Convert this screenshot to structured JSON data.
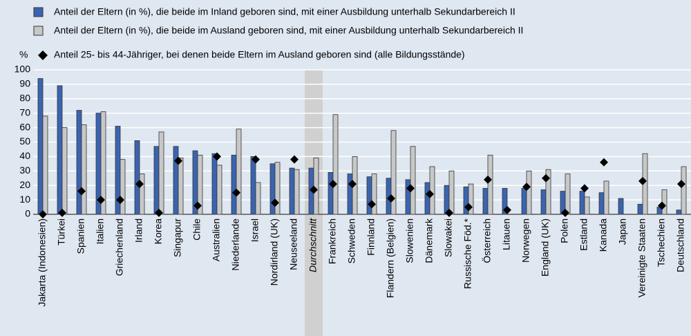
{
  "chart_data": {
    "type": "bar",
    "legend_title": "%",
    "categories": [
      "Jakarta (Indonesien)",
      "Türkei",
      "Spanien",
      "Italien",
      "Griechenland",
      "Irland",
      "Korea",
      "Singapur",
      "Chile",
      "Australien",
      "Niederlande",
      "Israel",
      "Nordirland (UK)",
      "Neuseeland",
      "Durchschnitt",
      "Frankreich",
      "Schweden",
      "Finnland",
      "Flandern (Belgien)",
      "Slowenien",
      "Dänemark",
      "Slowakei",
      "Russische Föd.*",
      "Österreich",
      "Litauen",
      "Norwegen",
      "England (UK)",
      "Polen",
      "Estland",
      "Kanada",
      "Japan",
      "Vereinigte Staaten",
      "Tschechien",
      "Deutschland"
    ],
    "highlight_index": 14,
    "series": [
      {
        "name": "Anteil der Eltern (in %), die beide im Inland geboren sind, mit einer Ausbildung unterhalb Sekundarbereich II",
        "color": "#3a64b0",
        "kind": "bar",
        "values": [
          94,
          89,
          72,
          70,
          61,
          51,
          47,
          47,
          44,
          42,
          41,
          40,
          35,
          32,
          32,
          29,
          28,
          26,
          25,
          24,
          22,
          20,
          19,
          18,
          18,
          18,
          17,
          16,
          16,
          15,
          11,
          7,
          5,
          3
        ]
      },
      {
        "name": "Anteil der Eltern (in %), die beide im Ausland geboren sind, mit einer Ausbildung unterhalb Sekundarbereich II",
        "color": "#c8c8c8",
        "kind": "bar",
        "values": [
          68,
          60,
          62,
          71,
          38,
          28,
          57,
          39,
          41,
          34,
          59,
          22,
          36,
          31,
          39,
          69,
          40,
          28,
          58,
          47,
          33,
          30,
          21,
          41,
          null,
          30,
          31,
          28,
          12,
          23,
          null,
          42,
          17,
          33
        ]
      },
      {
        "name": "Anteil 25- bis 44-Jähriger, bei denen beide Eltern im Ausland geboren sind (alle Bildungsstände)",
        "color": "#000000",
        "kind": "diamond",
        "values": [
          0,
          1,
          16,
          10,
          10,
          21,
          1,
          37,
          6,
          40,
          15,
          38,
          8,
          38,
          17,
          21,
          21,
          7,
          11,
          18,
          14,
          1,
          5,
          24,
          3,
          19,
          25,
          1,
          18,
          36,
          null,
          23,
          6,
          21
        ]
      }
    ],
    "ylim": [
      0,
      100
    ],
    "yticks": [
      0,
      10,
      20,
      30,
      40,
      50,
      60,
      70,
      80,
      90,
      100
    ],
    "grid": true
  }
}
